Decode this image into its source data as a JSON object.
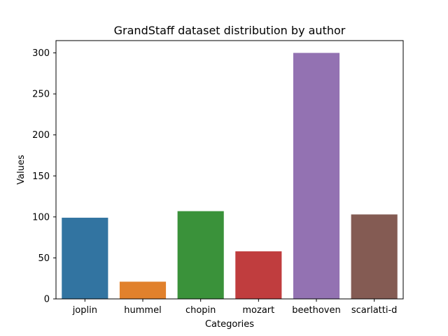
{
  "chart_data": {
    "type": "bar",
    "title": "GrandStaff dataset distribution by author",
    "xlabel": "Categories",
    "ylabel": "Values",
    "categories": [
      "joplin",
      "hummel",
      "chopin",
      "mozart",
      "beethoven",
      "scarlatti-d"
    ],
    "values": [
      99,
      21,
      107,
      58,
      300,
      103
    ],
    "colors": [
      "#3274a1",
      "#e1812c",
      "#3a923a",
      "#c03d3e",
      "#9372b2",
      "#845b53"
    ],
    "ylim": [
      0,
      315
    ],
    "yticks": [
      0,
      50,
      100,
      150,
      200,
      250,
      300
    ],
    "grid": false,
    "legend": "none"
  }
}
